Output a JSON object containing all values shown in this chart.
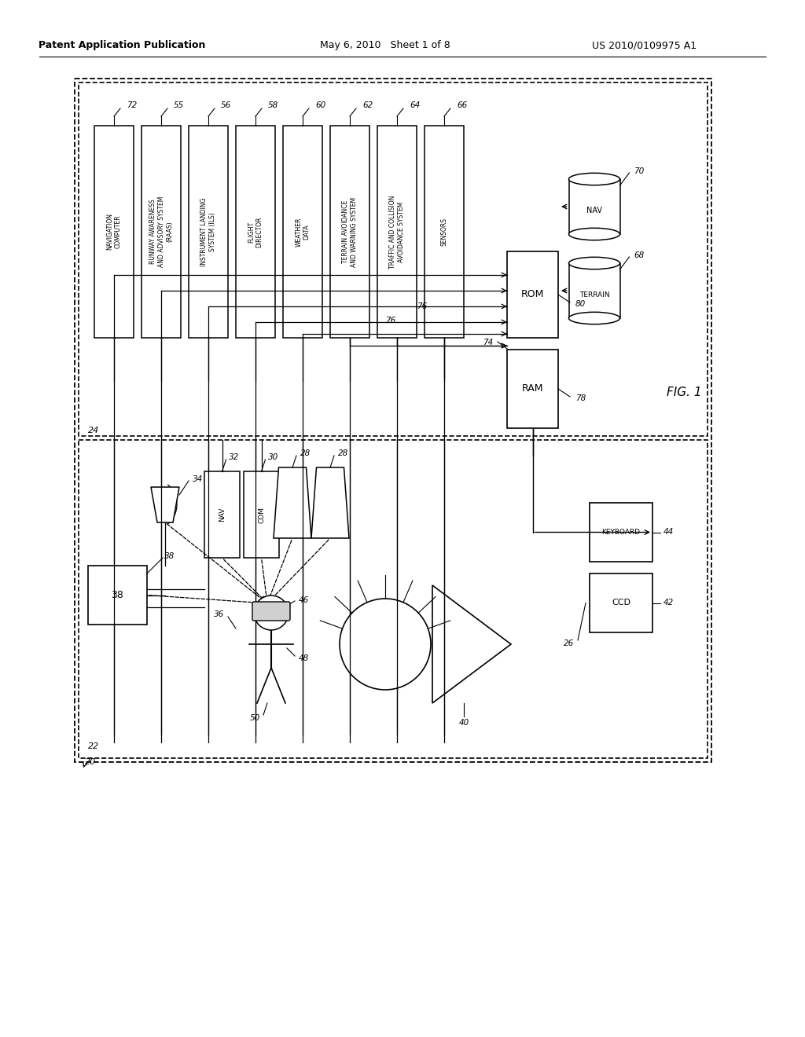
{
  "background_color": "#ffffff",
  "header_left": "Patent Application Publication",
  "header_center": "May 6, 2010   Sheet 1 of 8",
  "header_right": "US 2010/0109975 A1",
  "fig_label": "FIG. 1"
}
